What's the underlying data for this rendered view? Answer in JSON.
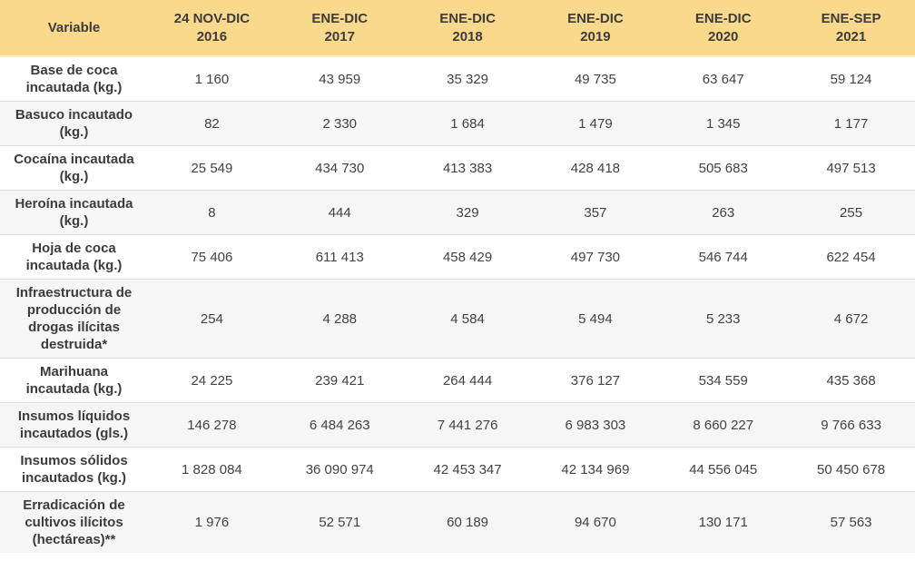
{
  "colors": {
    "header_bg": "#FAD88C",
    "header_border": "#FBEECB",
    "row_bg": "#FFFFFF",
    "row_alt_bg": "#F6F6F6",
    "separator": "#DEDEDE",
    "text_strong": "#3C3C3C",
    "text_value": "#424242"
  },
  "table": {
    "header": {
      "variable_label": "Variable",
      "periods": [
        "24 NOV-DIC\n2016",
        "ENE-DIC\n2017",
        "ENE-DIC\n2018",
        "ENE-DIC\n2019",
        "ENE-DIC\n2020",
        "ENE-SEP\n2021"
      ]
    },
    "rows": [
      {
        "variable": "Base de coca\nincautada (kg.)",
        "values": [
          "1 160",
          "43 959",
          "35 329",
          "49 735",
          "63 647",
          "59 124"
        ]
      },
      {
        "variable": "Basuco incautado\n(kg.)",
        "values": [
          "82",
          "2 330",
          "1 684",
          "1 479",
          "1 345",
          "1 177"
        ]
      },
      {
        "variable": "Cocaína incautada\n(kg.)",
        "values": [
          "25 549",
          "434 730",
          "413 383",
          "428 418",
          "505 683",
          "497 513"
        ]
      },
      {
        "variable": "Heroína incautada\n(kg.)",
        "values": [
          "8",
          "444",
          "329",
          "357",
          "263",
          "255"
        ]
      },
      {
        "variable": "Hoja de coca\nincautada (kg.)",
        "values": [
          "75 406",
          "611 413",
          "458 429",
          "497 730",
          "546 744",
          "622 454"
        ]
      },
      {
        "variable": "Infraestructura de\nproducción de\ndrogas ilícitas\ndestruida*",
        "values": [
          "254",
          "4 288",
          "4 584",
          "5 494",
          "5 233",
          "4 672"
        ]
      },
      {
        "variable": "Marihuana\nincautada (kg.)",
        "values": [
          "24 225",
          "239 421",
          "264 444",
          "376 127",
          "534 559",
          "435 368"
        ]
      },
      {
        "variable": "Insumos líquidos\nincautados (gls.)",
        "values": [
          "146 278",
          "6 484 263",
          "7 441 276",
          "6 983 303",
          "8 660 227",
          "9 766 633"
        ]
      },
      {
        "variable": "Insumos sólidos\nincautados (kg.)",
        "values": [
          "1 828 084",
          "36 090 974",
          "42 453 347",
          "42 134 969",
          "44 556 045",
          "50 450 678"
        ]
      },
      {
        "variable": "Erradicación de\ncultivos ilícitos\n(hectáreas)**",
        "values": [
          "1 976",
          "52 571",
          "60 189",
          "94 670",
          "130 171",
          "57 563"
        ]
      }
    ]
  },
  "chart_data": {
    "type": "table",
    "columns": [
      "Variable",
      "24 NOV-DIC 2016",
      "ENE-DIC 2017",
      "ENE-DIC 2018",
      "ENE-DIC 2019",
      "ENE-DIC 2020",
      "ENE-SEP 2021"
    ],
    "rows": [
      {
        "variable": "Base de coca incautada (kg.)",
        "values": [
          1160,
          43959,
          35329,
          49735,
          63647,
          59124
        ]
      },
      {
        "variable": "Basuco incautado (kg.)",
        "values": [
          82,
          2330,
          1684,
          1479,
          1345,
          1177
        ]
      },
      {
        "variable": "Cocaína incautada (kg.)",
        "values": [
          25549,
          434730,
          413383,
          428418,
          505683,
          497513
        ]
      },
      {
        "variable": "Heroína incautada (kg.)",
        "values": [
          8,
          444,
          329,
          357,
          263,
          255
        ]
      },
      {
        "variable": "Hoja de coca incautada (kg.)",
        "values": [
          75406,
          611413,
          458429,
          497730,
          546744,
          622454
        ]
      },
      {
        "variable": "Infraestructura de producción de drogas ilícitas destruida*",
        "values": [
          254,
          4288,
          4584,
          5494,
          5233,
          4672
        ]
      },
      {
        "variable": "Marihuana incautada (kg.)",
        "values": [
          24225,
          239421,
          264444,
          376127,
          534559,
          435368
        ]
      },
      {
        "variable": "Insumos líquidos incautados (gls.)",
        "values": [
          146278,
          6484263,
          7441276,
          6983303,
          8660227,
          9766633
        ]
      },
      {
        "variable": "Insumos sólidos incautados (kg.)",
        "values": [
          1828084,
          36090974,
          42453347,
          42134969,
          44556045,
          50450678
        ]
      },
      {
        "variable": "Erradicación de cultivos ilícitos (hectáreas)**",
        "values": [
          1976,
          52571,
          60189,
          94670,
          130171,
          57563
        ]
      }
    ]
  }
}
